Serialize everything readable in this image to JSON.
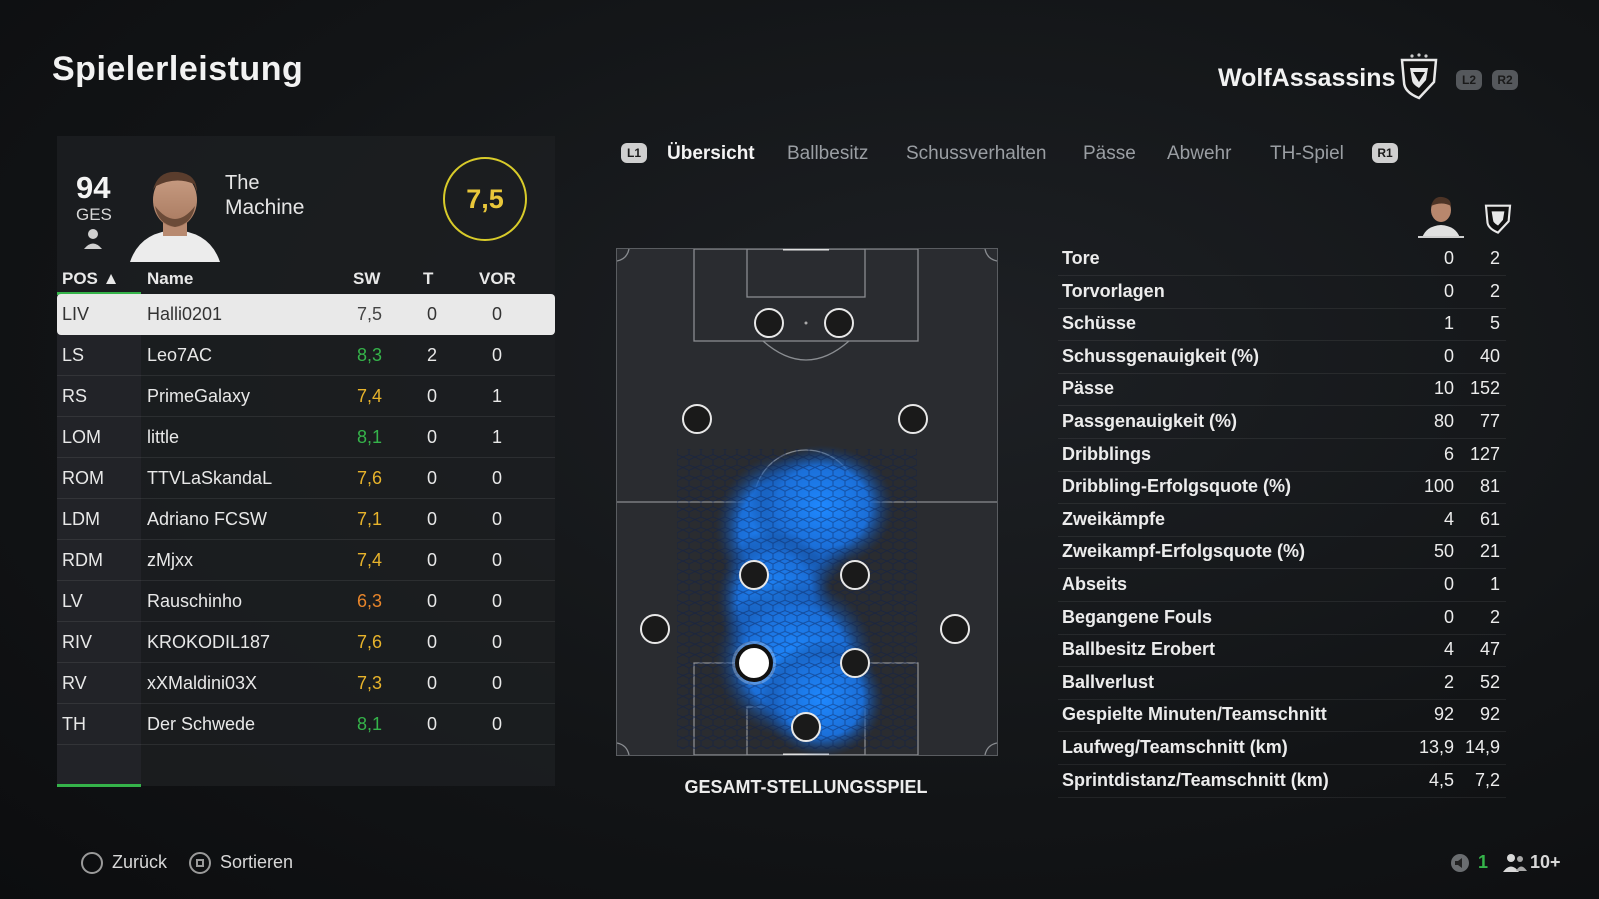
{
  "header": {
    "title": "Spielerleistung",
    "team_name": "WolfAssassins",
    "l2": "L2",
    "r2": "R2"
  },
  "player": {
    "ges_value": "94",
    "ges_label": "GES",
    "first_name": "The",
    "last_name": "Machine",
    "rating": "7,5"
  },
  "table": {
    "headers": {
      "pos": "POS ▲",
      "name": "Name",
      "sw": "SW",
      "t": "T",
      "vor": "VOR"
    },
    "rows": [
      {
        "pos": "LIV",
        "name": "Halli0201",
        "sw": "7,5",
        "t": "0",
        "vor": "0",
        "color": "#444444"
      },
      {
        "pos": "LS",
        "name": "Leo7AC",
        "sw": "8,3",
        "t": "2",
        "vor": "0",
        "color": "#35b34a"
      },
      {
        "pos": "RS",
        "name": "PrimeGalaxy",
        "sw": "7,4",
        "t": "0",
        "vor": "1",
        "color": "#e7b32b"
      },
      {
        "pos": "LOM",
        "name": "little",
        "sw": "8,1",
        "t": "0",
        "vor": "1",
        "color": "#35b34a"
      },
      {
        "pos": "ROM",
        "name": "TTVLaSkandaL",
        "sw": "7,6",
        "t": "0",
        "vor": "0",
        "color": "#e7b32b"
      },
      {
        "pos": "LDM",
        "name": "Adriano FCSW",
        "sw": "7,1",
        "t": "0",
        "vor": "0",
        "color": "#e7b32b"
      },
      {
        "pos": "RDM",
        "name": "zMjxx",
        "sw": "7,4",
        "t": "0",
        "vor": "0",
        "color": "#e7b32b"
      },
      {
        "pos": "LV",
        "name": "Rauschinho",
        "sw": "6,3",
        "t": "0",
        "vor": "0",
        "color": "#e8852a"
      },
      {
        "pos": "RIV",
        "name": "KROKODIL187",
        "sw": "7,6",
        "t": "0",
        "vor": "0",
        "color": "#e7b32b"
      },
      {
        "pos": "RV",
        "name": "xXMaldini03X",
        "sw": "7,3",
        "t": "0",
        "vor": "0",
        "color": "#e7b32b"
      },
      {
        "pos": "TH",
        "name": "Der Schwede",
        "sw": "8,1",
        "t": "0",
        "vor": "0",
        "color": "#35b34a"
      }
    ]
  },
  "tabs": {
    "l1": "L1",
    "r1": "R1",
    "items": [
      "Übersicht",
      "Ballbesitz",
      "Schussverhalten",
      "Pässe",
      "Abwehr",
      "TH-Spiel"
    ]
  },
  "pitch": {
    "label": "GESAMT-STELLUNGSSPIEL"
  },
  "stats": [
    {
      "label": "Tore",
      "player": "0",
      "team": "2"
    },
    {
      "label": "Torvorlagen",
      "player": "0",
      "team": "2"
    },
    {
      "label": "Schüsse",
      "player": "1",
      "team": "5"
    },
    {
      "label": "Schussgenauigkeit (%)",
      "player": "0",
      "team": "40"
    },
    {
      "label": "Pässe",
      "player": "10",
      "team": "152"
    },
    {
      "label": "Passgenauigkeit (%)",
      "player": "80",
      "team": "77"
    },
    {
      "label": "Dribblings",
      "player": "6",
      "team": "127"
    },
    {
      "label": "Dribbling-Erfolgsquote (%)",
      "player": "100",
      "team": "81"
    },
    {
      "label": "Zweikämpfe",
      "player": "4",
      "team": "61"
    },
    {
      "label": "Zweikampf-Erfolgsquote (%)",
      "player": "50",
      "team": "21"
    },
    {
      "label": "Abseits",
      "player": "0",
      "team": "1"
    },
    {
      "label": "Begangene Fouls",
      "player": "0",
      "team": "2"
    },
    {
      "label": "Ballbesitz Erobert",
      "player": "4",
      "team": "47"
    },
    {
      "label": "Ballverlust",
      "player": "2",
      "team": "52"
    },
    {
      "label": "Gespielte Minuten/Teamschnitt",
      "player": "92",
      "team": "92"
    },
    {
      "label": "Laufweg/Teamschnitt (km)",
      "player": "13,9",
      "team": "14,9"
    },
    {
      "label": "Sprintdistanz/Teamschnitt (km)",
      "player": "4,5",
      "team": "7,2"
    }
  ],
  "footer": {
    "back": "Zurück",
    "sort": "Sortieren",
    "count": "1",
    "players": "10+"
  },
  "colors": {
    "rating_ring": "#d8cb2a",
    "rating_text": "#e9c73a",
    "accent_green": "#35b34a",
    "heatmap": "#1e88ff"
  }
}
